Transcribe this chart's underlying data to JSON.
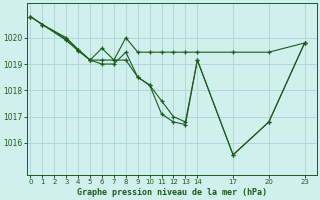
{
  "background_color": "#d0f0ee",
  "grid_color": "#b0d8d4",
  "line_color": "#1a5c1a",
  "title": "Graphe pression niveau de la mer (hPa)",
  "xlim": [
    -0.3,
    24.0
  ],
  "ylim": [
    1014.8,
    1021.3
  ],
  "xticks": [
    0,
    1,
    2,
    3,
    4,
    5,
    6,
    7,
    8,
    9,
    10,
    11,
    12,
    13,
    14,
    17,
    20,
    23
  ],
  "yticks": [
    1016,
    1017,
    1018,
    1019,
    1020
  ],
  "series": [
    {
      "x": [
        0,
        1,
        3,
        4,
        5,
        6,
        7,
        8,
        9,
        10,
        11,
        12,
        13,
        14,
        17,
        20,
        23
      ],
      "y": [
        1020.8,
        1020.5,
        1019.9,
        1019.5,
        1019.15,
        1019.6,
        1019.15,
        1020.0,
        1019.45,
        1019.45,
        1019.45,
        1019.45,
        1019.45,
        1019.45,
        1019.45,
        1019.45,
        1019.8
      ],
      "marker": true
    },
    {
      "x": [
        0,
        1,
        3,
        4,
        5,
        6,
        7,
        8,
        9,
        10,
        11,
        12,
        13,
        14,
        17,
        20,
        23
      ],
      "y": [
        1020.8,
        1020.5,
        1020.0,
        1019.55,
        1019.15,
        1019.15,
        1019.15,
        1019.15,
        1018.5,
        1018.2,
        1017.6,
        1017.0,
        1016.8,
        1019.15,
        1015.55,
        1016.8,
        1019.8
      ],
      "marker": true
    },
    {
      "comment": "Line3: starts ~1020.8, declines steadily, x=11 ~1017.1, x=12 ~1016.8, x=13 ~1016.7, x=14 ~1019.15, x=17 ~1015.5 min, x=20 ~1016.8, x=23 ~1019.8",
      "x": [
        0,
        1,
        3,
        4,
        5,
        6,
        7,
        8,
        9,
        10,
        11,
        12,
        13,
        14,
        17,
        20,
        23
      ],
      "y": [
        1020.8,
        1020.5,
        1019.95,
        1019.55,
        1019.15,
        1019.0,
        1019.0,
        1019.45,
        1018.5,
        1018.2,
        1017.1,
        1016.8,
        1016.7,
        1019.15,
        1015.55,
        1016.8,
        1019.8
      ],
      "marker": true
    }
  ]
}
